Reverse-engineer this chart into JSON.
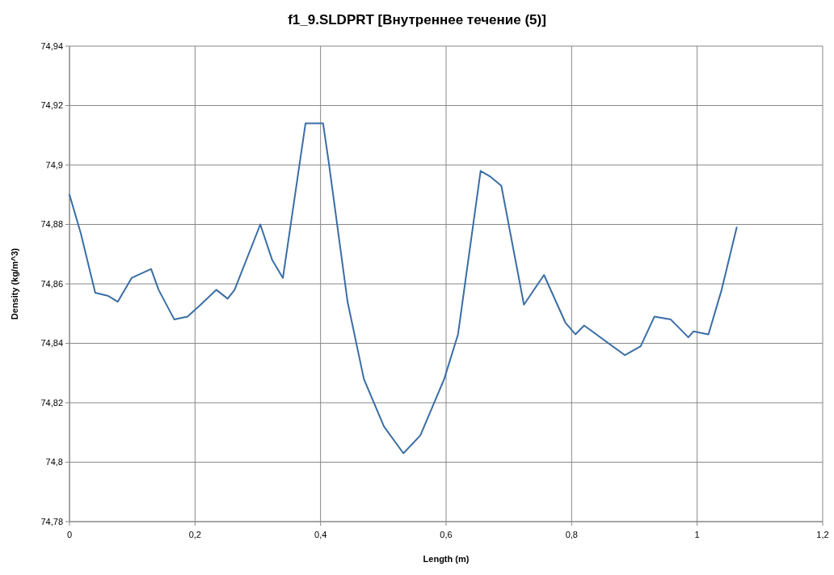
{
  "chart_data": {
    "type": "line",
    "title": "f1_9.SLDPRT [Внутреннее течение (5)]",
    "xlabel": "Length (m)",
    "ylabel": "Density (kg/m^3)",
    "x": [
      0,
      0.018,
      0.041,
      0.061,
      0.077,
      0.099,
      0.13,
      0.142,
      0.167,
      0.188,
      0.209,
      0.234,
      0.252,
      0.263,
      0.304,
      0.323,
      0.34,
      0.376,
      0.388,
      0.404,
      0.413,
      0.443,
      0.469,
      0.501,
      0.532,
      0.559,
      0.597,
      0.619,
      0.655,
      0.671,
      0.688,
      0.724,
      0.756,
      0.79,
      0.806,
      0.82,
      0.885,
      0.91,
      0.932,
      0.958,
      0.986,
      0.994,
      1.018,
      1.039,
      1.063
    ],
    "series": [
      {
        "color": "#3a6ea5",
        "values": [
          74.89,
          74.877,
          74.857,
          74.856,
          74.854,
          74.862,
          74.865,
          74.858,
          74.848,
          74.849,
          74.853,
          74.858,
          74.855,
          74.858,
          74.88,
          74.868,
          74.862,
          74.914,
          74.914,
          74.914,
          74.901,
          74.854,
          74.828,
          74.812,
          74.803,
          74.809,
          74.828,
          74.843,
          74.898,
          74.896,
          74.893,
          74.853,
          74.863,
          74.847,
          74.843,
          74.846,
          74.836,
          74.839,
          74.849,
          74.848,
          74.842,
          74.844,
          74.843,
          74.858,
          74.879
        ]
      }
    ],
    "xlim": [
      0,
      1.2
    ],
    "xticks": [
      0,
      {
        "value": 0.2,
        "label": "0,2"
      },
      {
        "value": 0.4,
        "label": "0,4"
      },
      {
        "value": 0.6,
        "label": "0,6"
      },
      {
        "value": 0.8,
        "label": "0,8"
      },
      1,
      {
        "value": 1.2,
        "label": "1,2"
      }
    ],
    "ylim": [
      74.78,
      74.94
    ],
    "yticks": [
      {
        "value": 74.78,
        "label": "74,78"
      },
      {
        "value": 74.8,
        "label": "74,8"
      },
      {
        "value": 74.82,
        "label": "74,82"
      },
      {
        "value": 74.84,
        "label": "74,84"
      },
      {
        "value": 74.86,
        "label": "74,86"
      },
      {
        "value": 74.88,
        "label": "74,88"
      },
      {
        "value": 74.9,
        "label": "74,9"
      },
      {
        "value": 74.92,
        "label": "74,92"
      },
      {
        "value": 74.94,
        "label": "74,94"
      }
    ],
    "grid": true,
    "marker": "none",
    "line_style": "solid"
  }
}
